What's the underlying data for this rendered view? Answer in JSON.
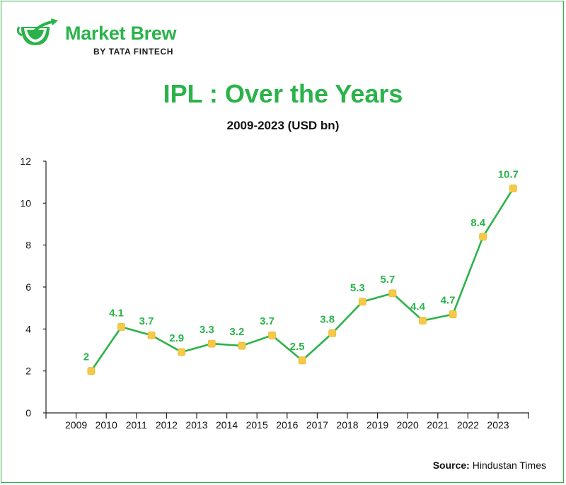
{
  "brand": {
    "name": "Market Brew",
    "sub_prefix": "BY",
    "sub_name": "TATA FINTECH",
    "color": "#2bb34a"
  },
  "source": {
    "label": "Source:",
    "text": "Hindustan Times"
  },
  "colors": {
    "line": "#2bb34a",
    "marker": "#f7c948",
    "axis": "#222222",
    "text": "#111111"
  },
  "chart_data": {
    "type": "line",
    "title": "IPL : Over the Years",
    "subtitle": "2009-2023 (USD bn)",
    "xlabel": "",
    "ylabel": "",
    "categories": [
      "2009",
      "2010",
      "2011",
      "2012",
      "2013",
      "2014",
      "2015",
      "2016",
      "2017",
      "2018",
      "2019",
      "2020",
      "2021",
      "2022",
      "2023"
    ],
    "series": [
      {
        "values": [
          2,
          4.1,
          3.7,
          2.9,
          3.3,
          3.2,
          3.7,
          2.5,
          3.8,
          5.3,
          5.7,
          4.4,
          4.7,
          8.4,
          10.7
        ],
        "labels": [
          "2",
          "4.1",
          "3.7",
          "2.9",
          "3.3",
          "3.2",
          "3.7",
          "2.5",
          "3.8",
          "5.3",
          "5.7",
          "4.4",
          "4.7",
          "8.4",
          "10.7"
        ]
      }
    ],
    "ylim": [
      0,
      12
    ],
    "yticks": [
      "0",
      "2",
      "4",
      "6",
      "8",
      "10",
      "12"
    ],
    "grid": false,
    "legend": "none"
  }
}
